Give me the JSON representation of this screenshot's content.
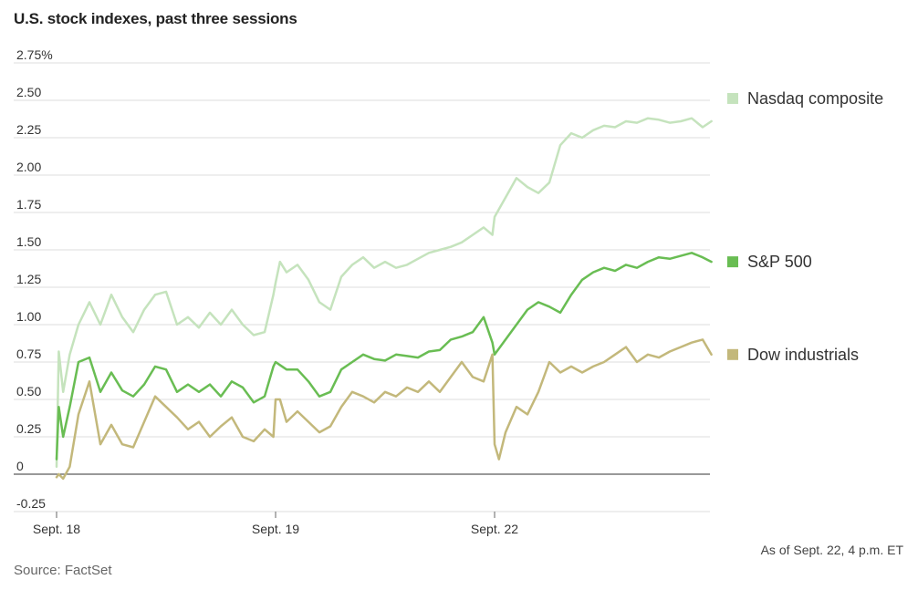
{
  "header": {
    "title": "U.S. stock indexes, past three sessions"
  },
  "footer": {
    "source": "Source: FactSet",
    "note": "As of Sept. 22, 4 p.m. ET"
  },
  "chart_data": {
    "type": "line",
    "title": "U.S. stock indexes, past three sessions",
    "xlabel": "",
    "ylabel": "",
    "ylim": [
      -0.25,
      2.75
    ],
    "y_ticks": [
      -0.25,
      0,
      0.25,
      0.5,
      0.75,
      1.0,
      1.25,
      1.5,
      1.75,
      2.0,
      2.25,
      2.5,
      2.75
    ],
    "y_tick_labels": [
      "-0.25",
      "0",
      "0.25",
      "0.50",
      "0.75",
      "1.00",
      "1.25",
      "1.50",
      "1.75",
      "2.00",
      "2.25",
      "2.50",
      "2.75%"
    ],
    "x_ticks": [
      0,
      1,
      2
    ],
    "x_tick_labels": [
      "Sept. 18",
      "Sept. 19",
      "Sept. 22"
    ],
    "xlim": [
      0,
      3
    ],
    "grid": true,
    "legend_placement": "right",
    "series": [
      {
        "name": "Nasdaq composite",
        "color": "#c5e3bd",
        "x": [
          0,
          0.01,
          0.03,
          0.06,
          0.1,
          0.15,
          0.2,
          0.25,
          0.3,
          0.35,
          0.4,
          0.45,
          0.5,
          0.55,
          0.6,
          0.65,
          0.7,
          0.75,
          0.8,
          0.85,
          0.9,
          0.95,
          0.99,
          1.0,
          1.02,
          1.05,
          1.1,
          1.15,
          1.2,
          1.25,
          1.3,
          1.35,
          1.4,
          1.45,
          1.5,
          1.55,
          1.6,
          1.65,
          1.7,
          1.75,
          1.8,
          1.85,
          1.9,
          1.95,
          1.99,
          2.0,
          2.05,
          2.1,
          2.15,
          2.2,
          2.25,
          2.3,
          2.35,
          2.4,
          2.45,
          2.5,
          2.55,
          2.6,
          2.65,
          2.7,
          2.75,
          2.8,
          2.85,
          2.9,
          2.95,
          2.99
        ],
        "values": [
          0.05,
          0.82,
          0.55,
          0.8,
          1.0,
          1.15,
          1.0,
          1.2,
          1.05,
          0.95,
          1.1,
          1.2,
          1.22,
          1.0,
          1.05,
          0.98,
          1.08,
          1.0,
          1.1,
          1.0,
          0.93,
          0.95,
          1.2,
          1.28,
          1.42,
          1.35,
          1.4,
          1.3,
          1.15,
          1.1,
          1.32,
          1.4,
          1.45,
          1.38,
          1.42,
          1.38,
          1.4,
          1.44,
          1.48,
          1.5,
          1.52,
          1.55,
          1.6,
          1.65,
          1.6,
          1.72,
          1.85,
          1.98,
          1.92,
          1.88,
          1.95,
          2.2,
          2.28,
          2.25,
          2.3,
          2.33,
          2.32,
          2.36,
          2.35,
          2.38,
          2.37,
          2.35,
          2.36,
          2.38,
          2.32,
          2.36
        ]
      },
      {
        "name": "S&P 500",
        "color": "#69bd53",
        "x": [
          0,
          0.01,
          0.03,
          0.06,
          0.1,
          0.15,
          0.2,
          0.25,
          0.3,
          0.35,
          0.4,
          0.45,
          0.5,
          0.55,
          0.6,
          0.65,
          0.7,
          0.75,
          0.8,
          0.85,
          0.9,
          0.95,
          0.99,
          1.0,
          1.02,
          1.05,
          1.1,
          1.15,
          1.2,
          1.25,
          1.3,
          1.35,
          1.4,
          1.45,
          1.5,
          1.55,
          1.6,
          1.65,
          1.7,
          1.75,
          1.8,
          1.85,
          1.9,
          1.95,
          1.99,
          2.0,
          2.05,
          2.1,
          2.15,
          2.2,
          2.25,
          2.3,
          2.35,
          2.4,
          2.45,
          2.5,
          2.55,
          2.6,
          2.65,
          2.7,
          2.75,
          2.8,
          2.85,
          2.9,
          2.95,
          2.99
        ],
        "values": [
          0.1,
          0.45,
          0.25,
          0.45,
          0.75,
          0.78,
          0.55,
          0.68,
          0.56,
          0.52,
          0.6,
          0.72,
          0.7,
          0.55,
          0.6,
          0.55,
          0.6,
          0.52,
          0.62,
          0.58,
          0.48,
          0.52,
          0.72,
          0.75,
          0.73,
          0.7,
          0.7,
          0.62,
          0.52,
          0.55,
          0.7,
          0.75,
          0.8,
          0.77,
          0.76,
          0.8,
          0.79,
          0.78,
          0.82,
          0.83,
          0.9,
          0.92,
          0.95,
          1.05,
          0.88,
          0.8,
          0.9,
          1.0,
          1.1,
          1.15,
          1.12,
          1.08,
          1.2,
          1.3,
          1.35,
          1.38,
          1.36,
          1.4,
          1.38,
          1.42,
          1.45,
          1.44,
          1.46,
          1.48,
          1.45,
          1.42
        ]
      },
      {
        "name": "Dow industrials",
        "color": "#c3b87b",
        "x": [
          0,
          0.01,
          0.03,
          0.06,
          0.1,
          0.15,
          0.2,
          0.25,
          0.3,
          0.35,
          0.4,
          0.45,
          0.5,
          0.55,
          0.6,
          0.65,
          0.7,
          0.75,
          0.8,
          0.85,
          0.9,
          0.95,
          0.99,
          1.0,
          1.02,
          1.05,
          1.1,
          1.15,
          1.2,
          1.25,
          1.3,
          1.35,
          1.4,
          1.45,
          1.5,
          1.55,
          1.6,
          1.65,
          1.7,
          1.75,
          1.8,
          1.85,
          1.9,
          1.95,
          1.99,
          2.0,
          2.02,
          2.05,
          2.1,
          2.15,
          2.2,
          2.25,
          2.3,
          2.35,
          2.4,
          2.45,
          2.5,
          2.55,
          2.6,
          2.65,
          2.7,
          2.75,
          2.8,
          2.85,
          2.9,
          2.95,
          2.99
        ],
        "values": [
          -0.02,
          0.0,
          -0.03,
          0.05,
          0.4,
          0.62,
          0.2,
          0.33,
          0.2,
          0.18,
          0.35,
          0.52,
          0.45,
          0.38,
          0.3,
          0.35,
          0.25,
          0.32,
          0.38,
          0.25,
          0.22,
          0.3,
          0.25,
          0.5,
          0.5,
          0.35,
          0.42,
          0.35,
          0.28,
          0.32,
          0.45,
          0.55,
          0.52,
          0.48,
          0.55,
          0.52,
          0.58,
          0.55,
          0.62,
          0.55,
          0.65,
          0.75,
          0.65,
          0.62,
          0.8,
          0.2,
          0.1,
          0.28,
          0.45,
          0.4,
          0.55,
          0.75,
          0.68,
          0.72,
          0.68,
          0.72,
          0.75,
          0.8,
          0.85,
          0.75,
          0.8,
          0.78,
          0.82,
          0.85,
          0.88,
          0.9,
          0.8
        ]
      }
    ]
  }
}
